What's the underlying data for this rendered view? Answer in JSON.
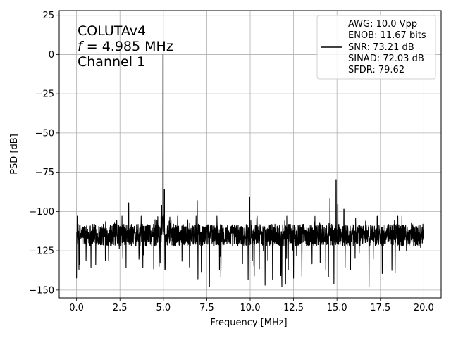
{
  "chart_data": {
    "type": "line",
    "xlabel": "Frequency [MHz]",
    "ylabel": "PSD [dB]",
    "xlim": [
      -1.0,
      21.0
    ],
    "ylim": [
      -155,
      28
    ],
    "xticks": [
      0.0,
      2.5,
      5.0,
      7.5,
      10.0,
      12.5,
      15.0,
      17.5,
      20.0
    ],
    "xtick_labels": [
      "0.0",
      "2.5",
      "5.0",
      "7.5",
      "10.0",
      "12.5",
      "15.0",
      "17.5",
      "20.0"
    ],
    "yticks": [
      25,
      0,
      -25,
      -50,
      -75,
      -100,
      -125,
      -150
    ],
    "ytick_labels": [
      "25",
      "0",
      "−25",
      "−50",
      "−75",
      "−100",
      "−125",
      "−150"
    ],
    "grid": true,
    "line_color": "#000000",
    "annotation": {
      "line1": "COLUTAv4",
      "line2_var": "f",
      "line2_rest": " = 4.985 MHz",
      "line3": "Channel 1"
    },
    "legend": {
      "placement": "top-right",
      "lines": [
        "AWG: 10.0 Vpp",
        "ENOB: 11.67 bits",
        "SNR: 73.21 dB",
        "SINAD: 72.03 dB",
        "SFDR: 79.62"
      ]
    },
    "noise_floor": {
      "mean": -115,
      "min": -148,
      "max": -103
    },
    "series": [
      {
        "x": [
          4.985,
          3.0,
          6.95,
          9.97,
          14.95,
          15.05,
          14.6,
          15.4,
          5.06,
          4.9
        ],
        "y": [
          0.0,
          -94.5,
          -93.0,
          -91.0,
          -79.6,
          -95.5,
          -91.5,
          -98.5,
          -86.0,
          -96.0
        ]
      }
    ]
  }
}
